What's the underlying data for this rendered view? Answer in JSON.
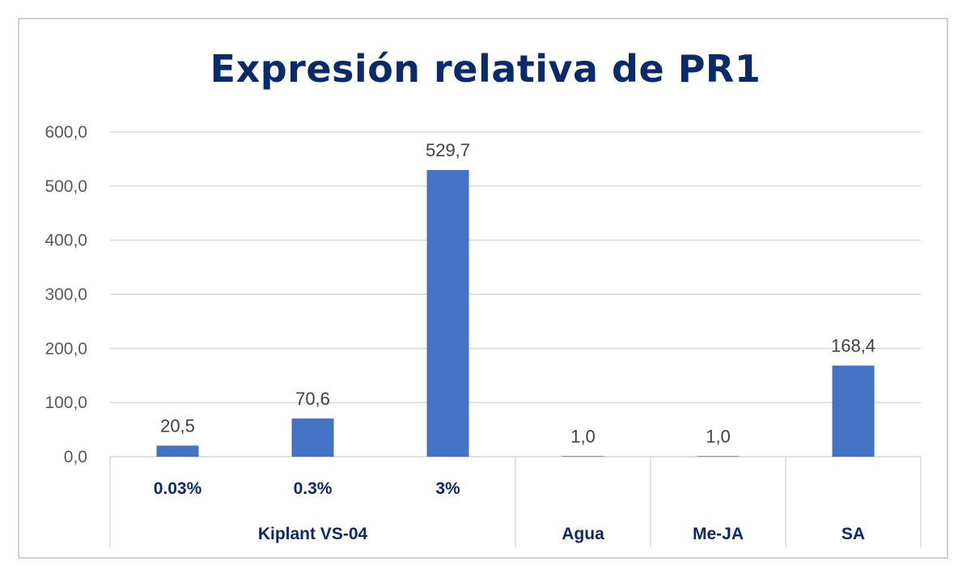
{
  "chart_data": {
    "type": "bar",
    "title": "Expresión relativa de PR1",
    "xlabel": "",
    "ylabel": "",
    "ylim": [
      0,
      600
    ],
    "yticks": [
      "0,0",
      "100,0",
      "200,0",
      "300,0",
      "400,0",
      "500,0",
      "600,0"
    ],
    "categories": [
      "0.03%",
      "0.3%",
      "3%",
      "Agua",
      "Me-JA",
      "SA"
    ],
    "groups": [
      {
        "label": "Kiplant VS-04",
        "categories": [
          "0.03%",
          "0.3%",
          "3%"
        ]
      }
    ],
    "values": [
      20.5,
      70.6,
      529.7,
      1.0,
      1.0,
      168.4
    ],
    "data_labels": [
      "20,5",
      "70,6",
      "529,7",
      "1,0",
      "1,0",
      "168,4"
    ],
    "bar_color": "#4472c4",
    "grid": true,
    "legend": "none"
  },
  "colors": {
    "bar": "#4472c4",
    "title": "#0b2a6b",
    "category_text": "#0b2a6b",
    "grid": "#d9d9d9"
  }
}
